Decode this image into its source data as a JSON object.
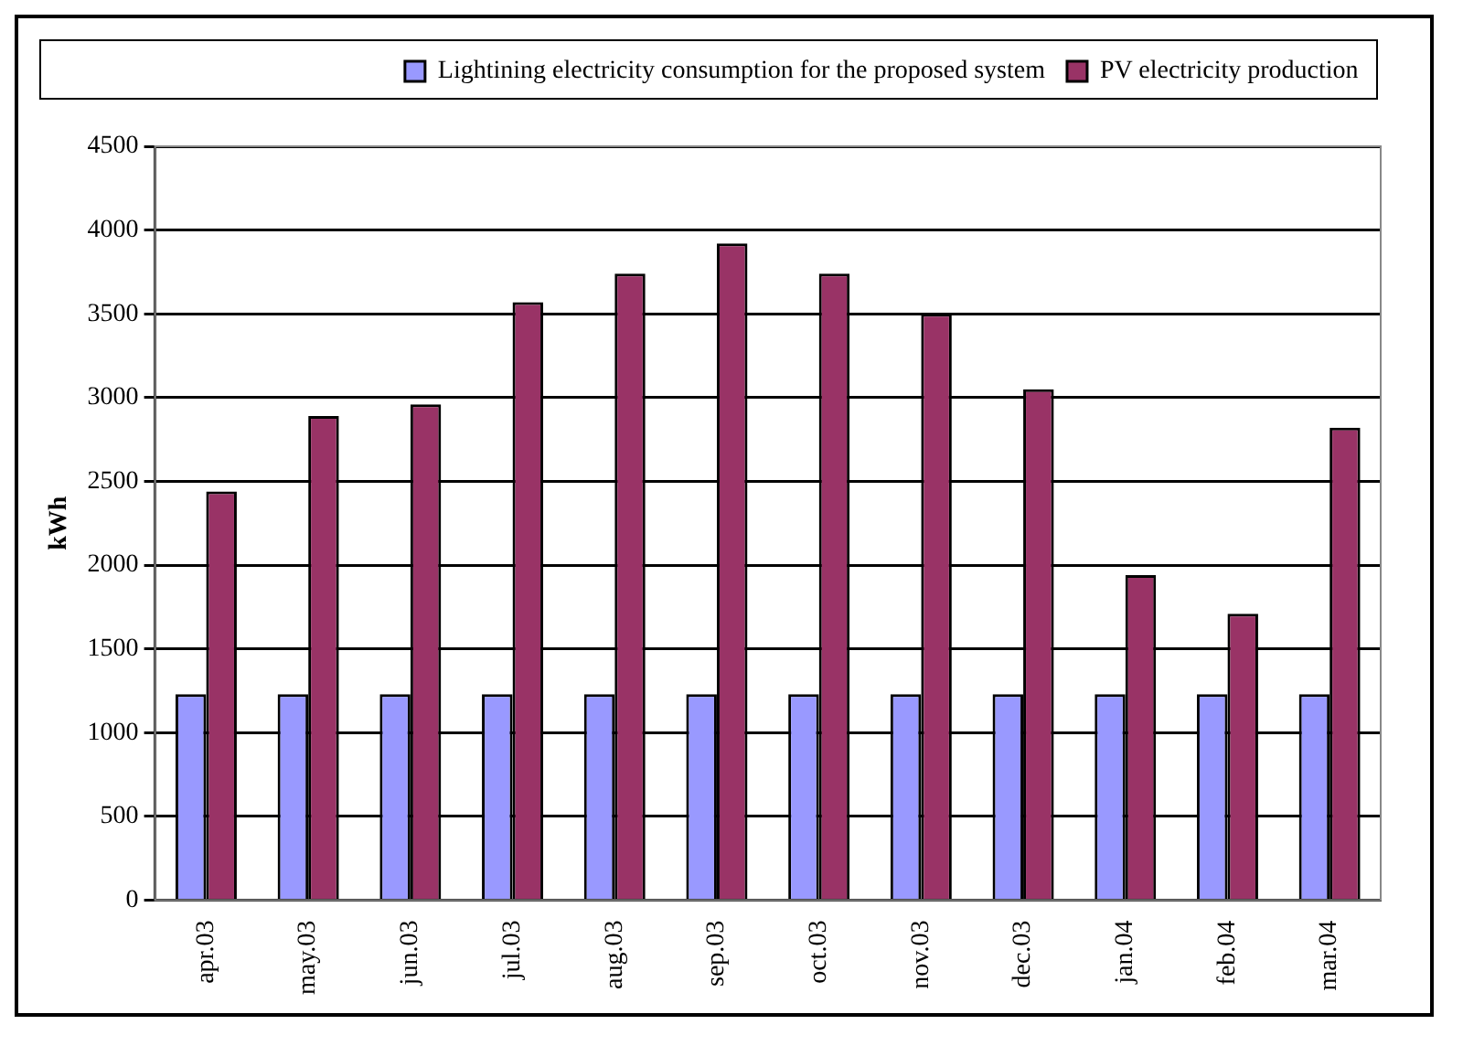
{
  "chart_data": {
    "type": "bar",
    "ylabel": "kWh",
    "categories": [
      "apr.03",
      "may.03",
      "jun.03",
      "jul.03",
      "aug.03",
      "sep.03",
      "oct.03",
      "nov.03",
      "dec.03",
      "jan.04",
      "feb.04",
      "mar.04"
    ],
    "series": [
      {
        "name": "Lightining electricity consumption for the proposed system",
        "color": "#9999ff",
        "values": [
          1230,
          1230,
          1230,
          1230,
          1230,
          1230,
          1230,
          1230,
          1230,
          1230,
          1230,
          1230
        ]
      },
      {
        "name": "PV electricity production",
        "color": "#993366",
        "values": [
          2440,
          2890,
          2960,
          3570,
          3740,
          3920,
          3740,
          3500,
          3050,
          1940,
          1710,
          2820
        ]
      }
    ],
    "ylim": [
      0,
      4500
    ],
    "yticks": [
      0,
      500,
      1000,
      1500,
      2000,
      2500,
      3000,
      3500,
      4000,
      4500
    ],
    "grid": "y",
    "legend": "top"
  }
}
